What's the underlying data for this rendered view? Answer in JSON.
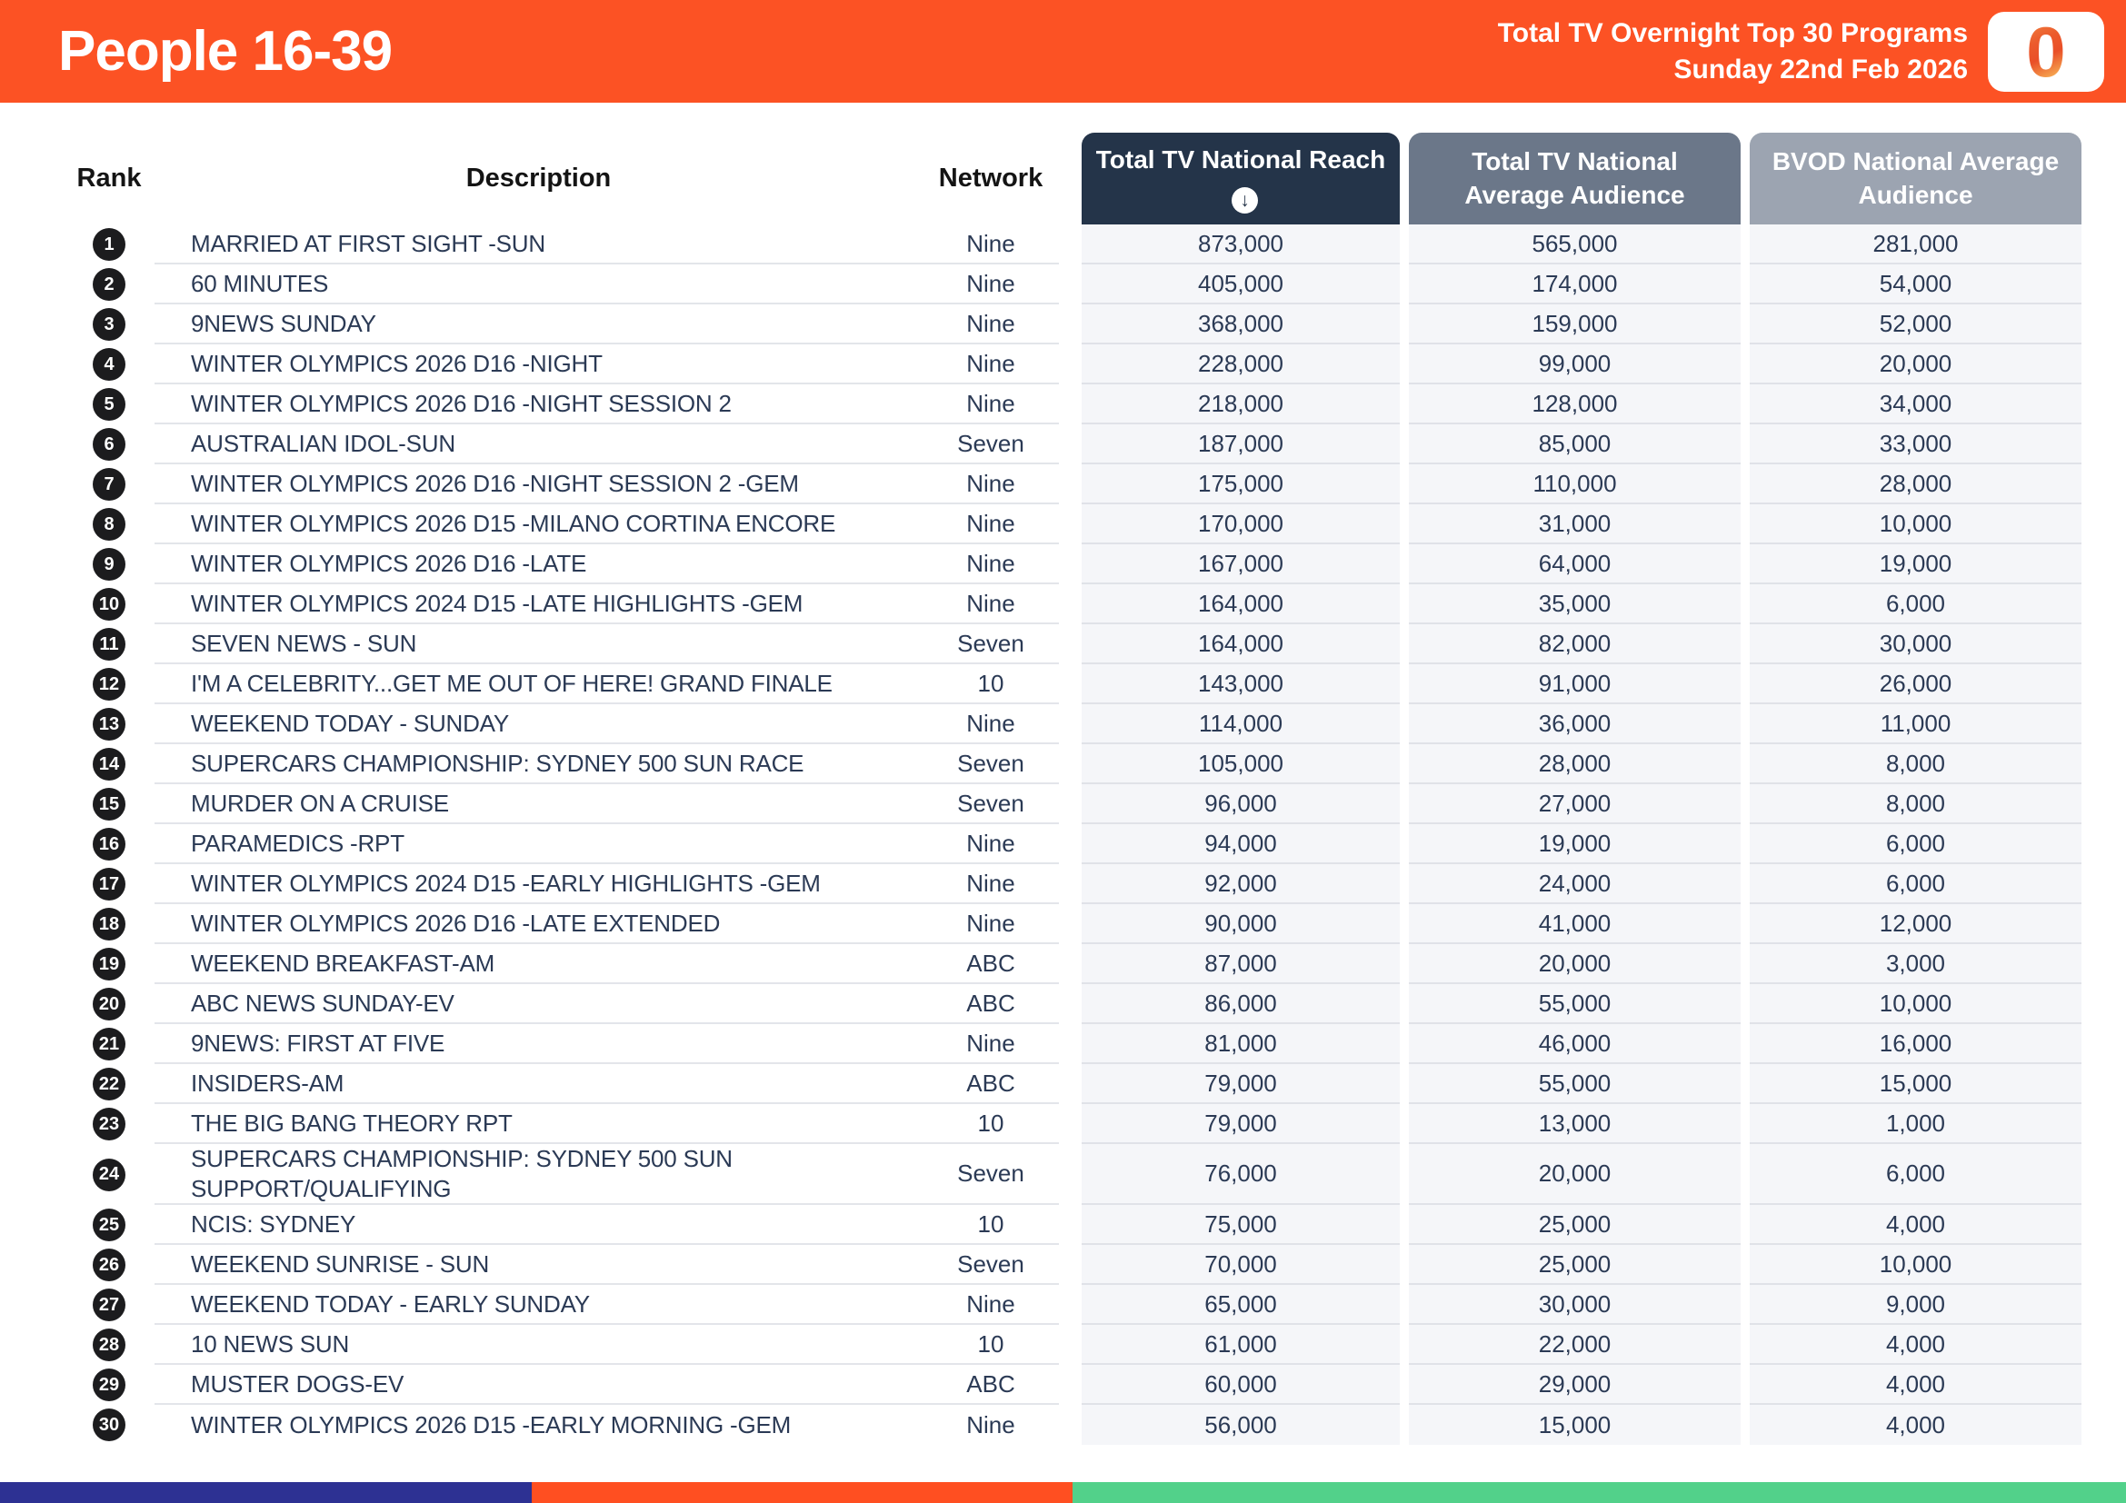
{
  "header": {
    "title": "People 16-39",
    "subtitle_line1": "Total TV Overnight Top 30 Programs",
    "subtitle_line2": "Sunday 22nd Feb 2026",
    "logo_text": "0"
  },
  "table": {
    "columns": {
      "rank": "Rank",
      "description": "Description",
      "network": "Network",
      "reach": "Total TV National Reach",
      "avg_audience": "Total TV National Average Audience",
      "bvod_audience": "BVOD National Average Audience"
    },
    "sort_icon": "↓",
    "rows": [
      {
        "rank": "1",
        "description": "MARRIED AT FIRST SIGHT -SUN",
        "network": "Nine",
        "reach": "873,000",
        "avg_audience": "565,000",
        "bvod_audience": "281,000"
      },
      {
        "rank": "2",
        "description": "60 MINUTES",
        "network": "Nine",
        "reach": "405,000",
        "avg_audience": "174,000",
        "bvod_audience": "54,000"
      },
      {
        "rank": "3",
        "description": "9NEWS SUNDAY",
        "network": "Nine",
        "reach": "368,000",
        "avg_audience": "159,000",
        "bvod_audience": "52,000"
      },
      {
        "rank": "4",
        "description": "WINTER OLYMPICS 2026 D16 -NIGHT",
        "network": "Nine",
        "reach": "228,000",
        "avg_audience": "99,000",
        "bvod_audience": "20,000"
      },
      {
        "rank": "5",
        "description": "WINTER OLYMPICS 2026 D16 -NIGHT SESSION 2",
        "network": "Nine",
        "reach": "218,000",
        "avg_audience": "128,000",
        "bvod_audience": "34,000"
      },
      {
        "rank": "6",
        "description": "AUSTRALIAN IDOL-SUN",
        "network": "Seven",
        "reach": "187,000",
        "avg_audience": "85,000",
        "bvod_audience": "33,000"
      },
      {
        "rank": "7",
        "description": "WINTER OLYMPICS 2026 D16 -NIGHT SESSION 2 -GEM",
        "network": "Nine",
        "reach": "175,000",
        "avg_audience": "110,000",
        "bvod_audience": "28,000"
      },
      {
        "rank": "8",
        "description": "WINTER OLYMPICS 2026 D15 -MILANO CORTINA ENCORE",
        "network": "Nine",
        "reach": "170,000",
        "avg_audience": "31,000",
        "bvod_audience": "10,000"
      },
      {
        "rank": "9",
        "description": "WINTER OLYMPICS 2026 D16 -LATE",
        "network": "Nine",
        "reach": "167,000",
        "avg_audience": "64,000",
        "bvod_audience": "19,000"
      },
      {
        "rank": "10",
        "description": "WINTER OLYMPICS 2024 D15 -LATE HIGHLIGHTS -GEM",
        "network": "Nine",
        "reach": "164,000",
        "avg_audience": "35,000",
        "bvod_audience": "6,000"
      },
      {
        "rank": "11",
        "description": "SEVEN NEWS - SUN",
        "network": "Seven",
        "reach": "164,000",
        "avg_audience": "82,000",
        "bvod_audience": "30,000"
      },
      {
        "rank": "12",
        "description": "I'M A CELEBRITY...GET ME OUT OF HERE! GRAND FINALE",
        "network": "10",
        "reach": "143,000",
        "avg_audience": "91,000",
        "bvod_audience": "26,000"
      },
      {
        "rank": "13",
        "description": "WEEKEND TODAY - SUNDAY",
        "network": "Nine",
        "reach": "114,000",
        "avg_audience": "36,000",
        "bvod_audience": "11,000"
      },
      {
        "rank": "14",
        "description": "SUPERCARS CHAMPIONSHIP: SYDNEY 500 SUN RACE",
        "network": "Seven",
        "reach": "105,000",
        "avg_audience": "28,000",
        "bvod_audience": "8,000"
      },
      {
        "rank": "15",
        "description": "MURDER ON A CRUISE",
        "network": "Seven",
        "reach": "96,000",
        "avg_audience": "27,000",
        "bvod_audience": "8,000"
      },
      {
        "rank": "16",
        "description": "PARAMEDICS -RPT",
        "network": "Nine",
        "reach": "94,000",
        "avg_audience": "19,000",
        "bvod_audience": "6,000"
      },
      {
        "rank": "17",
        "description": "WINTER OLYMPICS 2024 D15 -EARLY HIGHLIGHTS -GEM",
        "network": "Nine",
        "reach": "92,000",
        "avg_audience": "24,000",
        "bvod_audience": "6,000"
      },
      {
        "rank": "18",
        "description": "WINTER OLYMPICS 2026 D16 -LATE EXTENDED",
        "network": "Nine",
        "reach": "90,000",
        "avg_audience": "41,000",
        "bvod_audience": "12,000"
      },
      {
        "rank": "19",
        "description": "WEEKEND BREAKFAST-AM",
        "network": "ABC",
        "reach": "87,000",
        "avg_audience": "20,000",
        "bvod_audience": "3,000"
      },
      {
        "rank": "20",
        "description": "ABC NEWS SUNDAY-EV",
        "network": "ABC",
        "reach": "86,000",
        "avg_audience": "55,000",
        "bvod_audience": "10,000"
      },
      {
        "rank": "21",
        "description": "9NEWS: FIRST AT FIVE",
        "network": "Nine",
        "reach": "81,000",
        "avg_audience": "46,000",
        "bvod_audience": "16,000"
      },
      {
        "rank": "22",
        "description": "INSIDERS-AM",
        "network": "ABC",
        "reach": "79,000",
        "avg_audience": "55,000",
        "bvod_audience": "15,000"
      },
      {
        "rank": "23",
        "description": "THE BIG BANG THEORY RPT",
        "network": "10",
        "reach": "79,000",
        "avg_audience": "13,000",
        "bvod_audience": "1,000"
      },
      {
        "rank": "24",
        "description": "SUPERCARS CHAMPIONSHIP: SYDNEY 500 SUN SUPPORT/QUALIFYING",
        "network": "Seven",
        "reach": "76,000",
        "avg_audience": "20,000",
        "bvod_audience": "6,000"
      },
      {
        "rank": "25",
        "description": "NCIS: SYDNEY",
        "network": "10",
        "reach": "75,000",
        "avg_audience": "25,000",
        "bvod_audience": "4,000"
      },
      {
        "rank": "26",
        "description": "WEEKEND SUNRISE - SUN",
        "network": "Seven",
        "reach": "70,000",
        "avg_audience": "25,000",
        "bvod_audience": "10,000"
      },
      {
        "rank": "27",
        "description": "WEEKEND TODAY - EARLY SUNDAY",
        "network": "Nine",
        "reach": "65,000",
        "avg_audience": "30,000",
        "bvod_audience": "9,000"
      },
      {
        "rank": "28",
        "description": "10 NEWS SUN",
        "network": "10",
        "reach": "61,000",
        "avg_audience": "22,000",
        "bvod_audience": "4,000"
      },
      {
        "rank": "29",
        "description": "MUSTER DOGS-EV",
        "network": "ABC",
        "reach": "60,000",
        "avg_audience": "29,000",
        "bvod_audience": "4,000"
      },
      {
        "rank": "30",
        "description": "WINTER OLYMPICS 2026 D15 -EARLY MORNING -GEM",
        "network": "Nine",
        "reach": "56,000",
        "avg_audience": "15,000",
        "bvod_audience": "4,000"
      }
    ]
  },
  "chart_data": {
    "type": "table",
    "title": "People 16-39 — Total TV Overnight Top 30 Programs — Sunday 22nd Feb 2026",
    "columns": [
      "Rank",
      "Description",
      "Network",
      "Total TV National Reach",
      "Total TV National Average Audience",
      "BVOD National Average Audience"
    ],
    "rows": [
      [
        1,
        "MARRIED AT FIRST SIGHT -SUN",
        "Nine",
        873000,
        565000,
        281000
      ],
      [
        2,
        "60 MINUTES",
        "Nine",
        405000,
        174000,
        54000
      ],
      [
        3,
        "9NEWS SUNDAY",
        "Nine",
        368000,
        159000,
        52000
      ],
      [
        4,
        "WINTER OLYMPICS 2026 D16 -NIGHT",
        "Nine",
        228000,
        99000,
        20000
      ],
      [
        5,
        "WINTER OLYMPICS 2026 D16 -NIGHT SESSION 2",
        "Nine",
        218000,
        128000,
        34000
      ],
      [
        6,
        "AUSTRALIAN IDOL-SUN",
        "Seven",
        187000,
        85000,
        33000
      ],
      [
        7,
        "WINTER OLYMPICS 2026 D16 -NIGHT SESSION 2 -GEM",
        "Nine",
        175000,
        110000,
        28000
      ],
      [
        8,
        "WINTER OLYMPICS 2026 D15 -MILANO CORTINA ENCORE",
        "Nine",
        170000,
        31000,
        10000
      ],
      [
        9,
        "WINTER OLYMPICS 2026 D16 -LATE",
        "Nine",
        167000,
        64000,
        19000
      ],
      [
        10,
        "WINTER OLYMPICS 2024 D15 -LATE HIGHLIGHTS -GEM",
        "Nine",
        164000,
        35000,
        6000
      ],
      [
        11,
        "SEVEN NEWS - SUN",
        "Seven",
        164000,
        82000,
        30000
      ],
      [
        12,
        "I'M A CELEBRITY...GET ME OUT OF HERE! GRAND FINALE",
        "10",
        143000,
        91000,
        26000
      ],
      [
        13,
        "WEEKEND TODAY - SUNDAY",
        "Nine",
        114000,
        36000,
        11000
      ],
      [
        14,
        "SUPERCARS CHAMPIONSHIP: SYDNEY 500 SUN RACE",
        "Seven",
        105000,
        28000,
        8000
      ],
      [
        15,
        "MURDER ON A CRUISE",
        "Seven",
        96000,
        27000,
        8000
      ],
      [
        16,
        "PARAMEDICS -RPT",
        "Nine",
        94000,
        19000,
        6000
      ],
      [
        17,
        "WINTER OLYMPICS 2024 D15 -EARLY HIGHLIGHTS -GEM",
        "Nine",
        92000,
        24000,
        6000
      ],
      [
        18,
        "WINTER OLYMPICS 2026 D16 -LATE EXTENDED",
        "Nine",
        90000,
        41000,
        12000
      ],
      [
        19,
        "WEEKEND BREAKFAST-AM",
        "ABC",
        87000,
        20000,
        3000
      ],
      [
        20,
        "ABC NEWS SUNDAY-EV",
        "ABC",
        86000,
        55000,
        10000
      ],
      [
        21,
        "9NEWS: FIRST AT FIVE",
        "Nine",
        81000,
        46000,
        16000
      ],
      [
        22,
        "INSIDERS-AM",
        "ABC",
        79000,
        55000,
        15000
      ],
      [
        23,
        "THE BIG BANG THEORY RPT",
        "10",
        79000,
        13000,
        1000
      ],
      [
        24,
        "SUPERCARS CHAMPIONSHIP: SYDNEY 500 SUN SUPPORT/QUALIFYING",
        "Seven",
        76000,
        20000,
        6000
      ],
      [
        25,
        "NCIS: SYDNEY",
        "10",
        75000,
        25000,
        4000
      ],
      [
        26,
        "WEEKEND SUNRISE - SUN",
        "Seven",
        70000,
        25000,
        10000
      ],
      [
        27,
        "WEEKEND TODAY - EARLY SUNDAY",
        "Nine",
        65000,
        30000,
        9000
      ],
      [
        28,
        "10 NEWS SUN",
        "10",
        61000,
        22000,
        4000
      ],
      [
        29,
        "MUSTER DOGS-EV",
        "ABC",
        60000,
        29000,
        4000
      ],
      [
        30,
        "WINTER OLYMPICS 2026 D15 -EARLY MORNING -GEM",
        "Nine",
        56000,
        15000,
        4000
      ]
    ]
  },
  "colors": {
    "brand_orange": "#FC5224",
    "reach_header": "#243449",
    "avg_header": "#6B7789",
    "bvod_header": "#9CA4B1",
    "footer_navy": "#2D3193",
    "footer_orange": "#FF4F21",
    "footer_green": "#52D18A"
  }
}
